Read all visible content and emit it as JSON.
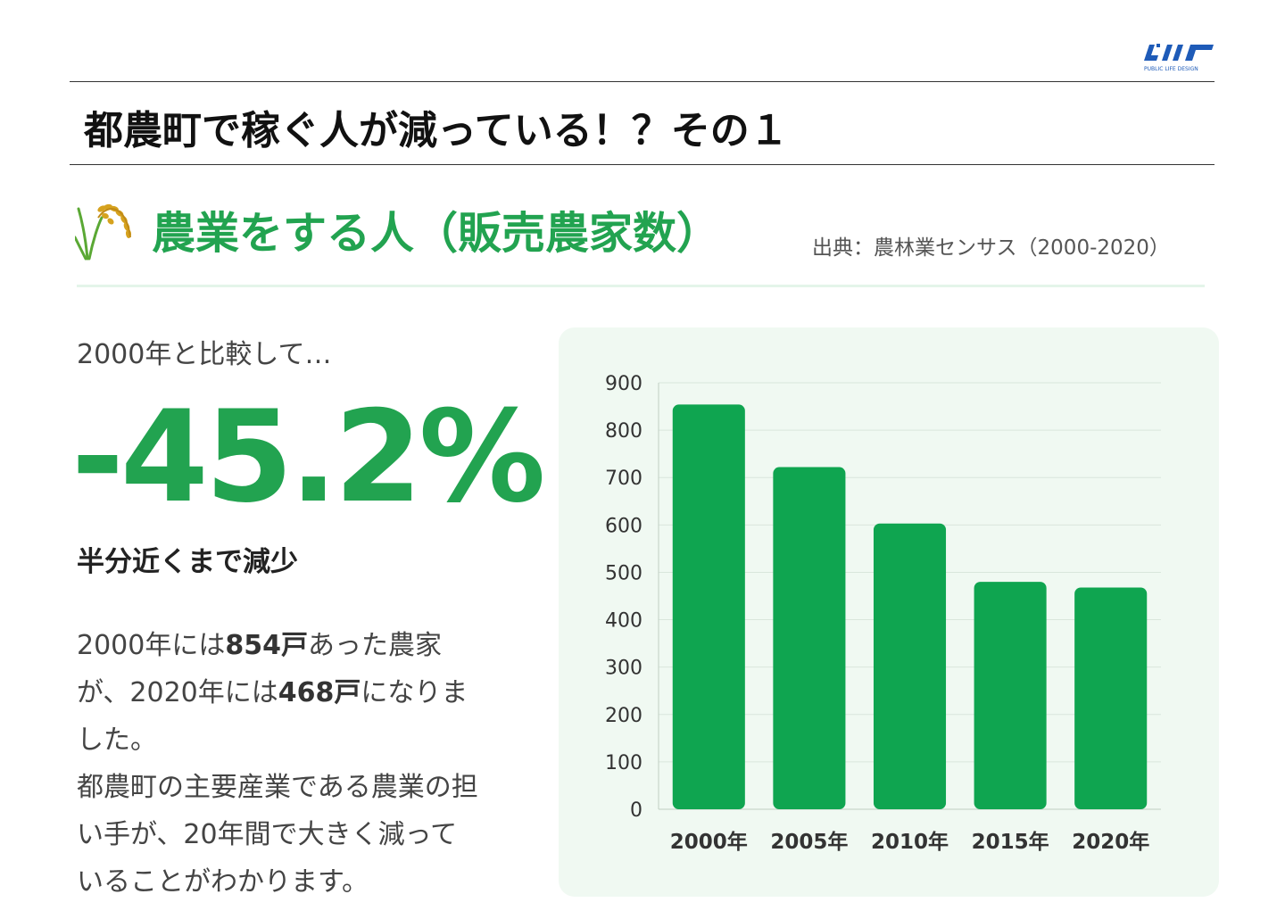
{
  "header": {
    "title": "都農町で稼ぐ人が減っている！？その１",
    "logo_text": "PUBLIC LIFE DESIGN"
  },
  "section": {
    "icon": "rice-plant-icon",
    "title": "農業をする人（販売農家数）",
    "source": "出典：農林業センサス（2000-2020）"
  },
  "summary": {
    "compare_label": "2000年と比較して…",
    "change": "-45.2%",
    "headline": "半分近くまで減少",
    "para1": {
      "t1": "2000年には",
      "b1": "854戸",
      "t2": "あった農家"
    },
    "para2": {
      "t1": "が、2020年には",
      "b1": "468戸",
      "t2": "になりま"
    },
    "para3": "した。",
    "para4": "都農町の主要産業である農業の担",
    "para5": "い手が、20年間で大きく減って",
    "para6": "いることがわかります。"
  },
  "colors": {
    "accent": "#22a350",
    "bar": "#0fa550",
    "card_bg": "#f0f9f2",
    "logo": "#1e5bb8"
  },
  "chart_data": {
    "type": "bar",
    "categories": [
      "2000年",
      "2005年",
      "2010年",
      "2015年",
      "2020年"
    ],
    "values": [
      854,
      722,
      603,
      480,
      468
    ],
    "ylim": [
      0,
      900
    ],
    "yticks": [
      0,
      100,
      200,
      300,
      400,
      500,
      600,
      700,
      800,
      900
    ],
    "grid": true,
    "legend": "none"
  }
}
